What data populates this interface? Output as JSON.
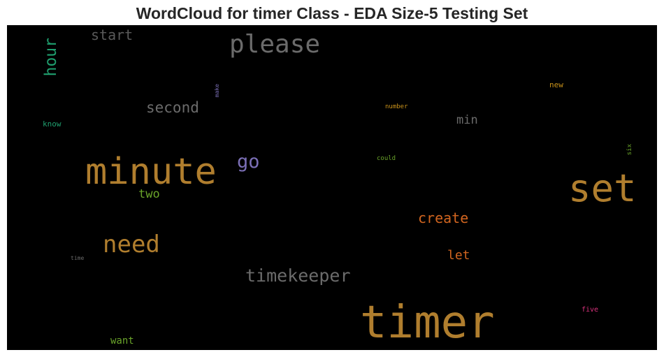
{
  "chart_data": {
    "type": "wordcloud",
    "title": "WordCloud for timer Class - EDA Size-5 Testing Set",
    "background": "#000000",
    "words": [
      {
        "text": "timer",
        "color": "#b07e2e"
      },
      {
        "text": "minute",
        "color": "#b07e2e"
      },
      {
        "text": "set",
        "color": "#b07e2e"
      },
      {
        "text": "please",
        "color": "#6b6b6b"
      },
      {
        "text": "need",
        "color": "#b07e2e"
      },
      {
        "text": "timekeeper",
        "color": "#6b6b6b"
      },
      {
        "text": "second",
        "color": "#6b6b6b"
      },
      {
        "text": "hour",
        "color": "#1f9e6e"
      },
      {
        "text": "go",
        "color": "#7b6fb6"
      },
      {
        "text": "create",
        "color": "#d2651f"
      },
      {
        "text": "start",
        "color": "#5a5a5a"
      },
      {
        "text": "let",
        "color": "#d2651f"
      },
      {
        "text": "min",
        "color": "#6b6b6b"
      },
      {
        "text": "two",
        "color": "#6aa42a"
      },
      {
        "text": "want",
        "color": "#6aa42a"
      },
      {
        "text": "new",
        "color": "#c9921a"
      },
      {
        "text": "know",
        "color": "#1f9e6e"
      },
      {
        "text": "number",
        "color": "#c9921a"
      },
      {
        "text": "could",
        "color": "#6aa42a"
      },
      {
        "text": "five",
        "color": "#d9327d"
      },
      {
        "text": "time",
        "color": "#6b6b6b"
      },
      {
        "text": "make",
        "color": "#7b6fb6"
      },
      {
        "text": "six",
        "color": "#6aa42a"
      }
    ]
  }
}
